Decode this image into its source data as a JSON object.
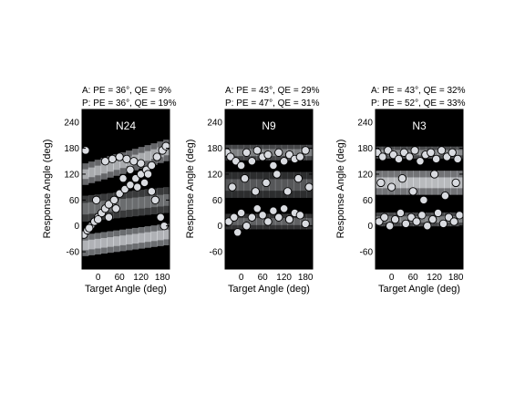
{
  "chart_data": [
    {
      "type": "scatter",
      "panel_label": "N24",
      "stats": [
        "A: PE = 36°, QE = 9%",
        "P: PE = 36°, QE = 19%"
      ],
      "xlabel": "Target Angle (deg)",
      "ylabel": "Response Angle (deg)",
      "xlim": [
        -45,
        200
      ],
      "ylim": [
        -100,
        270
      ],
      "xticks": [
        0,
        60,
        120,
        180
      ],
      "yticks": [
        -60,
        0,
        60,
        120,
        180,
        240
      ],
      "background": "heatmap (dark = low probability, light = high)",
      "series": [
        {
          "values": [
            [
              -40,
              -20
            ],
            [
              -30,
              -10
            ],
            [
              -20,
              0
            ],
            [
              -10,
              10
            ],
            [
              0,
              20
            ],
            [
              10,
              30
            ],
            [
              20,
              40
            ],
            [
              30,
              50
            ],
            [
              45,
              60
            ],
            [
              60,
              75
            ],
            [
              75,
              85
            ],
            [
              90,
              95
            ],
            [
              105,
              110
            ],
            [
              120,
              120
            ],
            [
              135,
              130
            ],
            [
              150,
              140
            ],
            [
              165,
              160
            ],
            [
              180,
              175
            ],
            [
              190,
              185
            ],
            [
              -35,
              175
            ],
            [
              -5,
              60
            ],
            [
              20,
              150
            ],
            [
              40,
              155
            ],
            [
              60,
              160
            ],
            [
              80,
              155
            ],
            [
              100,
              150
            ],
            [
              120,
              145
            ],
            [
              140,
              120
            ],
            [
              160,
              60
            ],
            [
              175,
              20
            ],
            [
              185,
              0
            ],
            [
              -25,
              -5
            ],
            [
              0,
              15
            ],
            [
              30,
              20
            ],
            [
              50,
              40
            ],
            [
              70,
              110
            ],
            [
              90,
              130
            ],
            [
              110,
              90
            ],
            [
              130,
              100
            ],
            [
              150,
              80
            ]
          ]
        }
      ]
    },
    {
      "type": "scatter",
      "panel_label": "N9",
      "stats": [
        "A: PE = 43°, QE = 29%",
        "P: PE = 47°, QE = 31%"
      ],
      "xlabel": "Target Angle (deg)",
      "ylabel": "Response Angle (deg)",
      "xlim": [
        -45,
        200
      ],
      "ylim": [
        -100,
        270
      ],
      "xticks": [
        0,
        60,
        120,
        180
      ],
      "yticks": [
        -60,
        0,
        60,
        120,
        180,
        240
      ],
      "background": "heatmap (dark = low probability, light = high)",
      "series": [
        {
          "values": [
            [
              -40,
              170
            ],
            [
              -30,
              160
            ],
            [
              -15,
              150
            ],
            [
              0,
              140
            ],
            [
              15,
              170
            ],
            [
              30,
              150
            ],
            [
              45,
              175
            ],
            [
              60,
              160
            ],
            [
              75,
              165
            ],
            [
              90,
              140
            ],
            [
              105,
              170
            ],
            [
              120,
              150
            ],
            [
              135,
              165
            ],
            [
              150,
              155
            ],
            [
              165,
              160
            ],
            [
              180,
              175
            ],
            [
              -35,
              10
            ],
            [
              -20,
              20
            ],
            [
              0,
              30
            ],
            [
              15,
              0
            ],
            [
              30,
              20
            ],
            [
              45,
              40
            ],
            [
              60,
              25
            ],
            [
              75,
              10
            ],
            [
              90,
              35
            ],
            [
              105,
              20
            ],
            [
              120,
              40
            ],
            [
              135,
              15
            ],
            [
              150,
              30
            ],
            [
              165,
              25
            ],
            [
              180,
              5
            ],
            [
              -25,
              90
            ],
            [
              10,
              110
            ],
            [
              40,
              80
            ],
            [
              70,
              100
            ],
            [
              100,
              120
            ],
            [
              130,
              80
            ],
            [
              160,
              110
            ],
            [
              190,
              90
            ],
            [
              -10,
              -15
            ]
          ]
        }
      ]
    },
    {
      "type": "scatter",
      "panel_label": "N3",
      "stats": [
        "A: PE = 43°, QE = 32%",
        "P: PE = 52°, QE = 33%"
      ],
      "xlabel": "Target Angle (deg)",
      "ylabel": "Response Angle (deg)",
      "xlim": [
        -45,
        200
      ],
      "ylim": [
        -100,
        270
      ],
      "xticks": [
        0,
        60,
        120,
        180
      ],
      "yticks": [
        -60,
        0,
        60,
        120,
        180,
        240
      ],
      "background": "heatmap (dark = low probability, light = high)",
      "series": [
        {
          "values": [
            [
              -40,
              170
            ],
            [
              -25,
              160
            ],
            [
              -10,
              175
            ],
            [
              5,
              165
            ],
            [
              20,
              155
            ],
            [
              35,
              170
            ],
            [
              50,
              160
            ],
            [
              65,
              175
            ],
            [
              80,
              150
            ],
            [
              95,
              165
            ],
            [
              110,
              170
            ],
            [
              125,
              155
            ],
            [
              140,
              175
            ],
            [
              155,
              160
            ],
            [
              170,
              170
            ],
            [
              185,
              155
            ],
            [
              -35,
              10
            ],
            [
              -20,
              20
            ],
            [
              -5,
              0
            ],
            [
              10,
              15
            ],
            [
              25,
              30
            ],
            [
              40,
              5
            ],
            [
              55,
              20
            ],
            [
              70,
              10
            ],
            [
              85,
              25
            ],
            [
              100,
              0
            ],
            [
              115,
              15
            ],
            [
              130,
              30
            ],
            [
              145,
              5
            ],
            [
              160,
              20
            ],
            [
              175,
              10
            ],
            [
              190,
              25
            ],
            [
              -30,
              100
            ],
            [
              0,
              90
            ],
            [
              30,
              110
            ],
            [
              60,
              80
            ],
            [
              90,
              60
            ],
            [
              120,
              120
            ],
            [
              150,
              70
            ],
            [
              180,
              100
            ]
          ]
        }
      ]
    }
  ]
}
